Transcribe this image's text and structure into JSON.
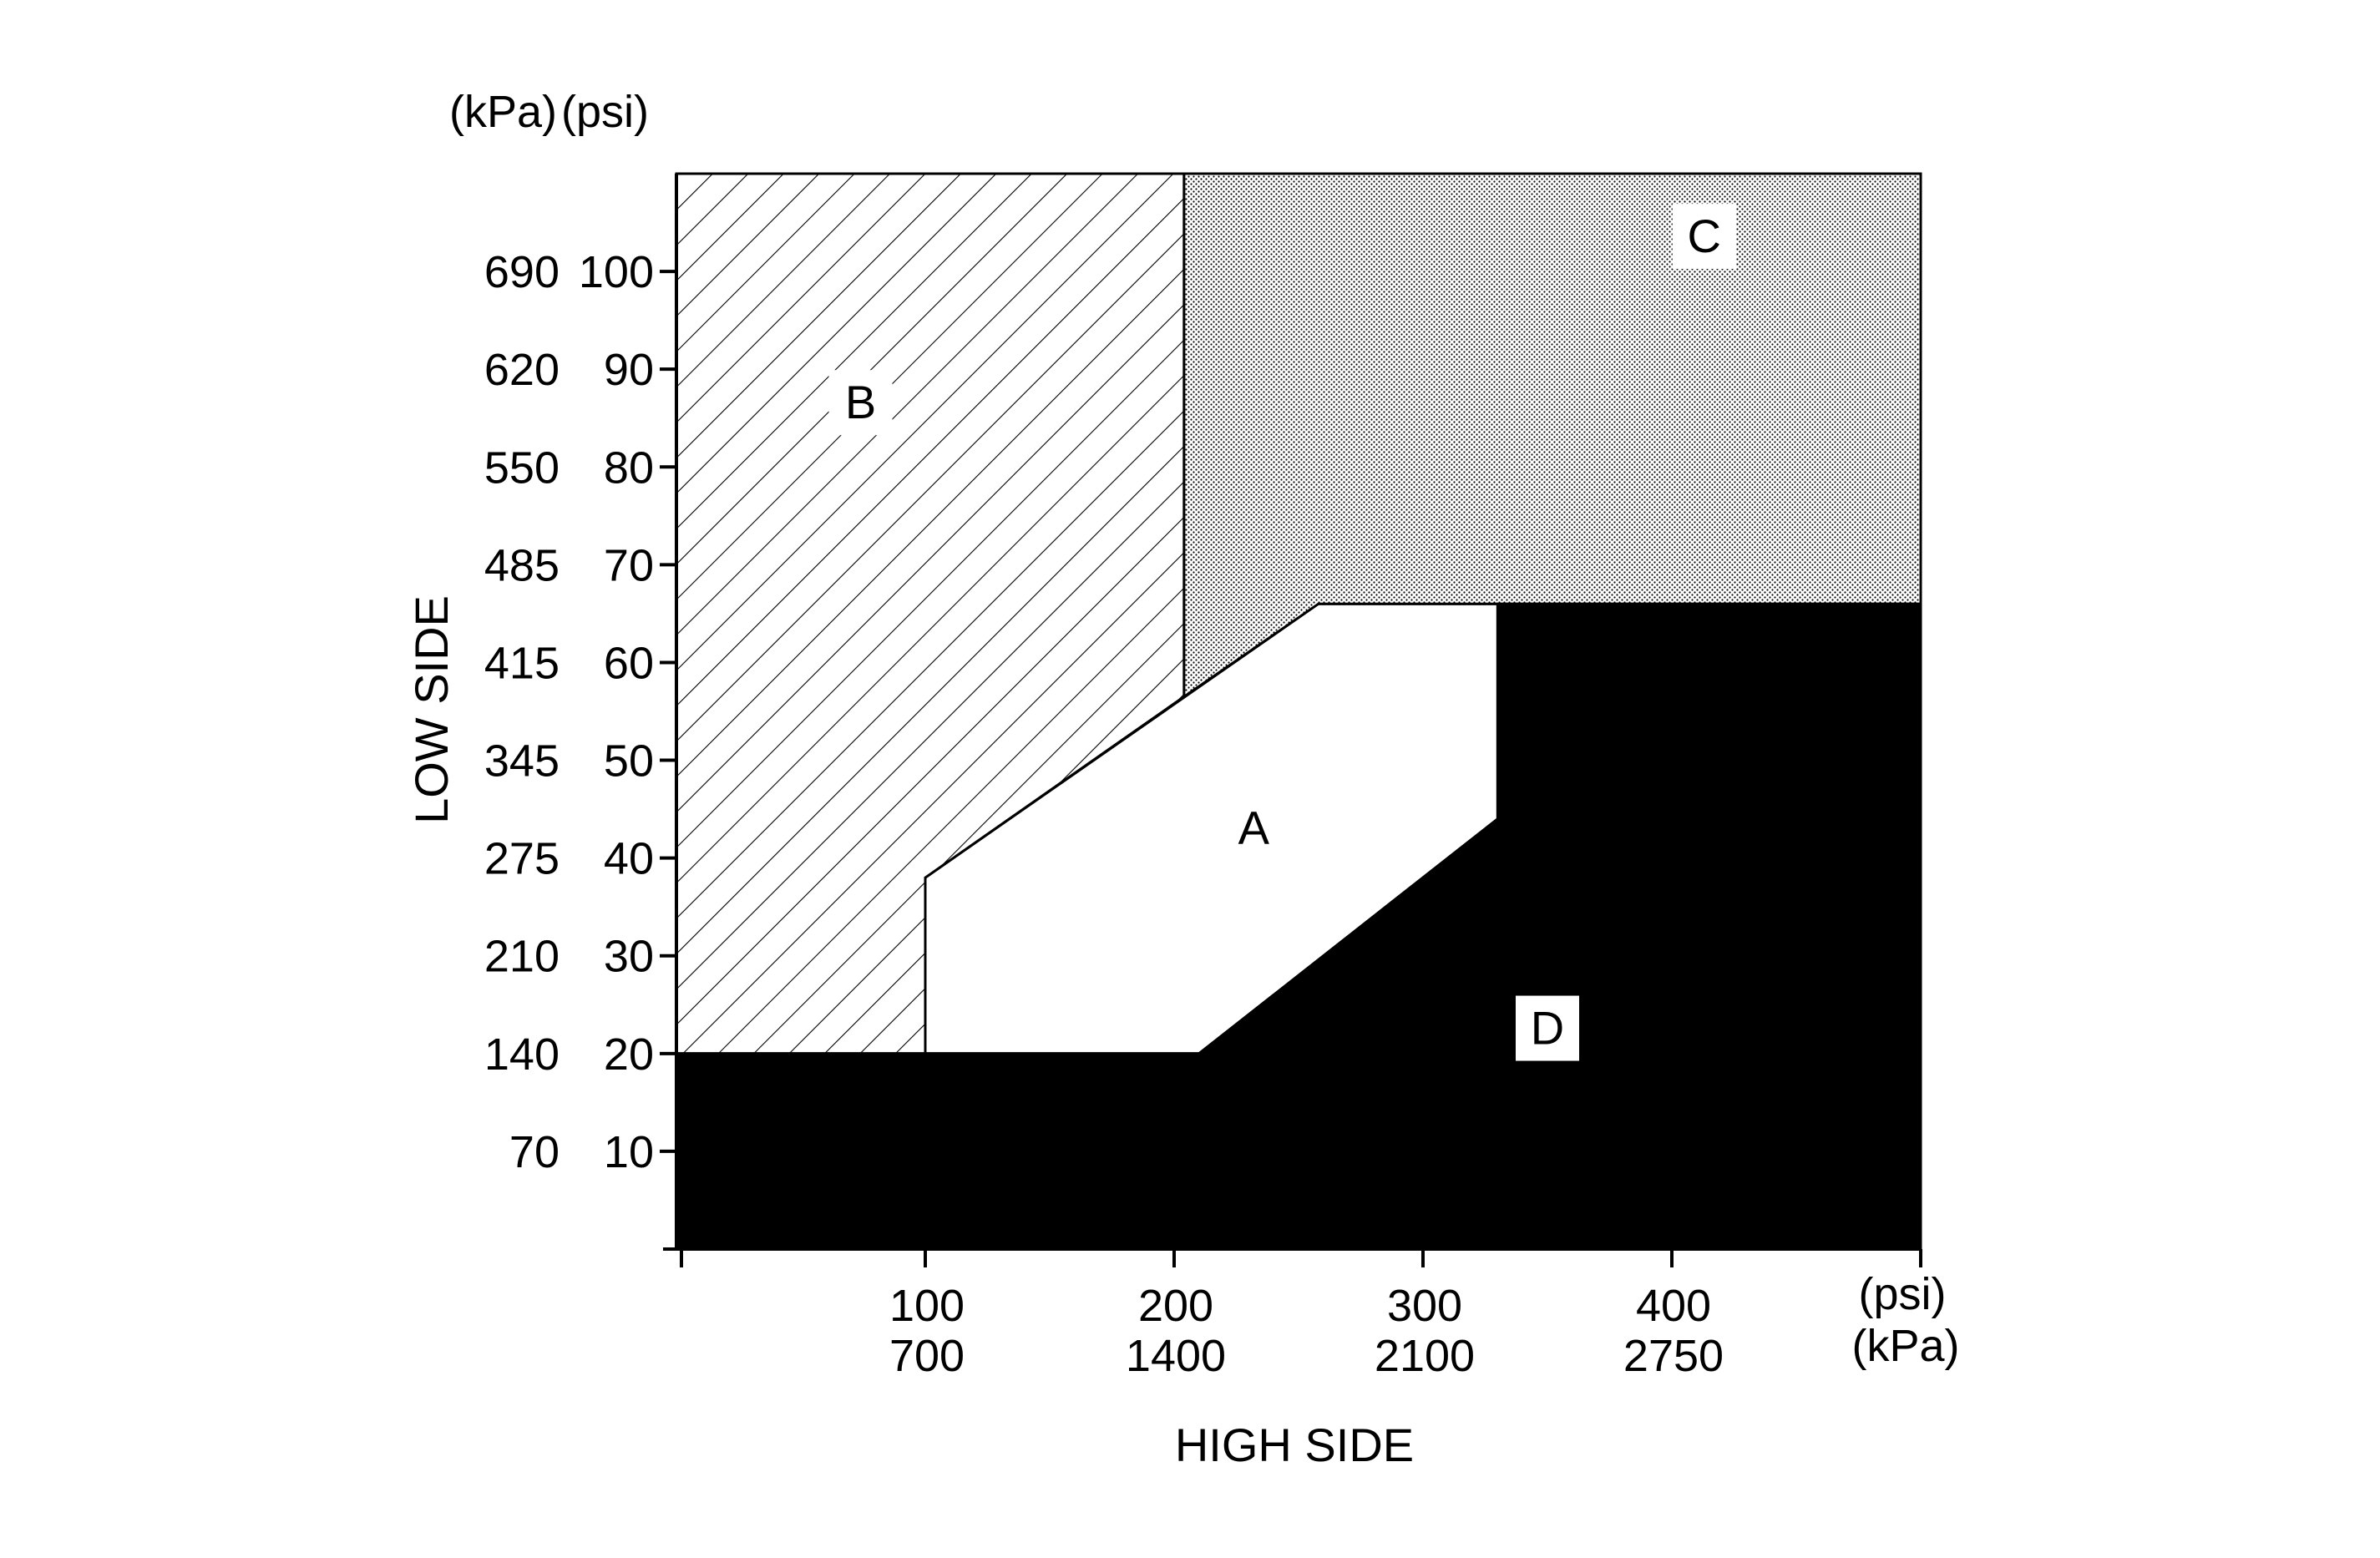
{
  "chart_data": {
    "type": "area",
    "title": "",
    "xlabel": "HIGH SIDE",
    "ylabel": "LOW SIDE",
    "x_unit_primary": "(psi)",
    "x_unit_secondary": "(kPa)",
    "y_unit_primary": "(psi)",
    "y_unit_secondary": "(kPa)",
    "xlim": [
      0,
      500
    ],
    "ylim": [
      0,
      110
    ],
    "x_ticks": [
      {
        "psi": "100",
        "kpa": "700"
      },
      {
        "psi": "200",
        "kpa": "1400"
      },
      {
        "psi": "300",
        "kpa": "2100"
      },
      {
        "psi": "400",
        "kpa": "2750"
      }
    ],
    "y_ticks": [
      {
        "psi": "10",
        "kpa": "70"
      },
      {
        "psi": "20",
        "kpa": "140"
      },
      {
        "psi": "30",
        "kpa": "210"
      },
      {
        "psi": "40",
        "kpa": "275"
      },
      {
        "psi": "50",
        "kpa": "345"
      },
      {
        "psi": "60",
        "kpa": "415"
      },
      {
        "psi": "70",
        "kpa": "485"
      },
      {
        "psi": "80",
        "kpa": "550"
      },
      {
        "psi": "90",
        "kpa": "620"
      },
      {
        "psi": "100",
        "kpa": "690"
      }
    ],
    "regions": [
      {
        "label": "A",
        "fill": "white",
        "polygon": [
          [
            100,
            20
          ],
          [
            210,
            20
          ],
          [
            330,
            44
          ],
          [
            330,
            66
          ],
          [
            258,
            66
          ],
          [
            100,
            38
          ]
        ],
        "label_at": [
          232,
          43
        ]
      },
      {
        "label": "B",
        "fill": "diagonal-hatch",
        "polygon": [
          [
            0,
            20
          ],
          [
            100,
            20
          ],
          [
            100,
            38
          ],
          [
            204,
            56.5
          ],
          [
            204,
            110
          ],
          [
            0,
            110
          ]
        ],
        "label_at": [
          74,
          86.5
        ]
      },
      {
        "label": "C",
        "fill": "dotted-gray",
        "polygon": [
          [
            204,
            56.5
          ],
          [
            258,
            66
          ],
          [
            500,
            66
          ],
          [
            500,
            110
          ],
          [
            204,
            110
          ]
        ],
        "label_at": [
          413,
          103.5
        ]
      },
      {
        "label": "D",
        "fill": "black",
        "polygon": [
          [
            0,
            0
          ],
          [
            500,
            0
          ],
          [
            500,
            66
          ],
          [
            330,
            66
          ],
          [
            330,
            44
          ],
          [
            210,
            20
          ],
          [
            0,
            20
          ]
        ],
        "label_at": [
          350,
          22.5
        ]
      }
    ],
    "grid": false,
    "legend": "none"
  }
}
